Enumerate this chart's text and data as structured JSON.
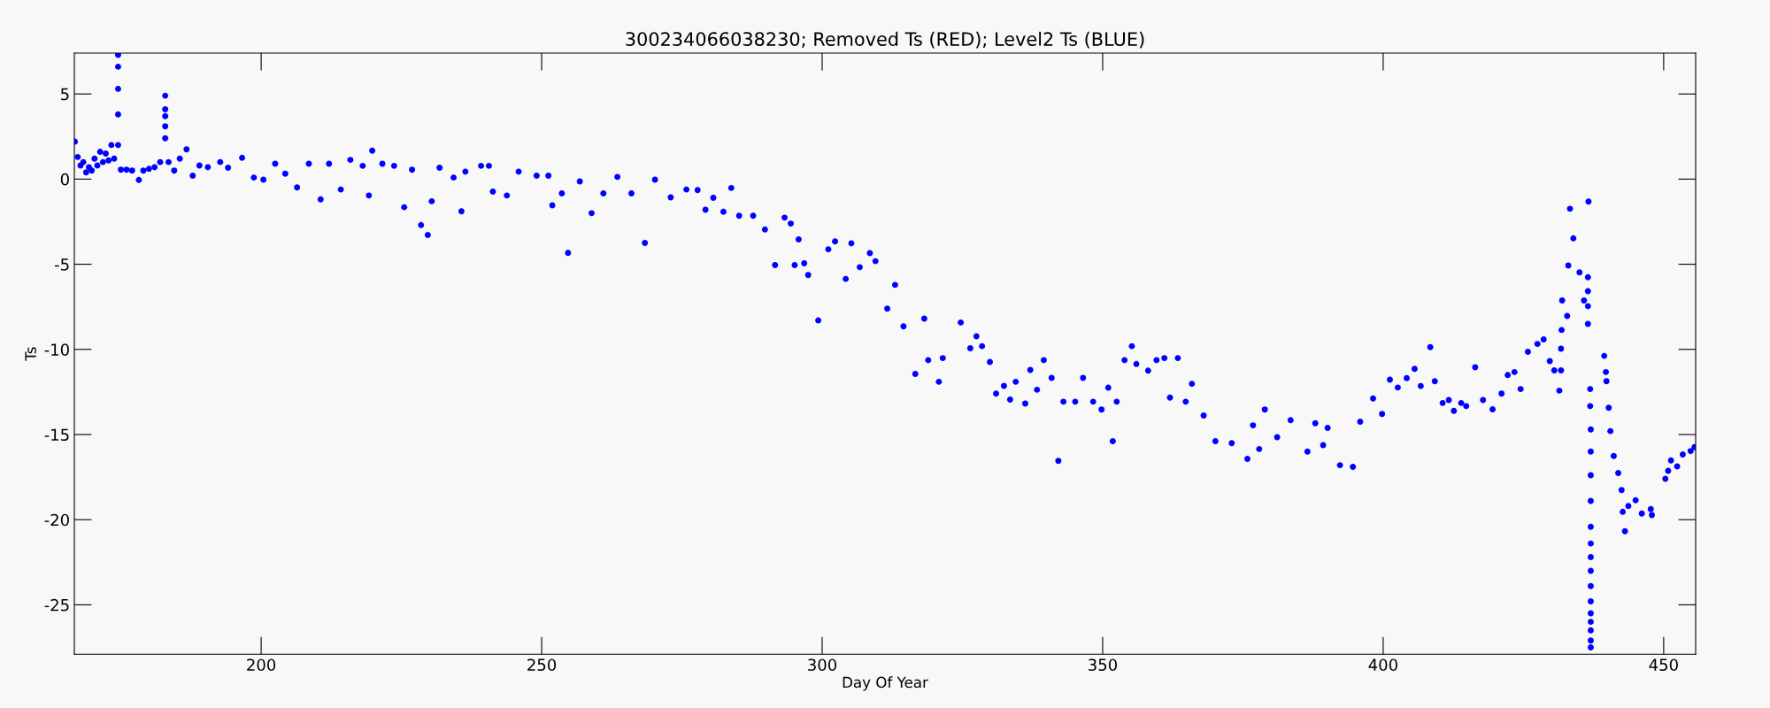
{
  "chart_data": {
    "type": "scatter",
    "title": "300234066038230; Removed Ts (RED); Level2 Ts (BLUE)",
    "xlabel": "Day Of Year",
    "ylabel": "Ts",
    "xlim": [
      166.7,
      455.7
    ],
    "xticks": [
      200,
      250,
      300,
      350,
      400,
      450
    ],
    "ylim": [
      -27.9,
      7.4
    ],
    "yticks": [
      -25,
      -20,
      -15,
      -10,
      -5,
      0,
      5
    ],
    "grid": false,
    "marker": "circle",
    "series": [
      {
        "color": "#0000ff",
        "x": [
          166.8,
          167.3,
          167.8,
          168.3,
          168.8,
          169.3,
          169.8,
          170.3,
          170.8,
          171.3,
          171.8,
          172.3,
          172.8,
          173.3,
          173.8,
          174.5,
          174.5,
          174.5,
          174.5,
          174.5,
          175.0,
          176.0,
          177.0,
          178.2,
          179.0,
          180.0,
          181.0,
          182.0,
          182.9,
          182.9,
          182.9,
          182.9,
          182.9,
          183.5,
          184.5,
          185.5,
          186.7,
          187.8,
          189.0,
          190.5,
          192.7,
          194.1,
          196.6,
          198.7,
          200.4,
          202.5,
          204.3,
          206.4,
          208.5,
          210.6,
          212.1,
          214.2,
          215.9,
          218.1,
          219.2,
          219.8,
          221.6,
          223.7,
          225.5,
          226.9,
          228.5,
          229.7,
          230.4,
          231.8,
          234.3,
          235.7,
          236.4,
          239.2,
          240.6,
          241.3,
          243.8,
          245.9,
          249.1,
          251.2,
          251.9,
          253.6,
          254.7,
          256.8,
          258.9,
          261.0,
          263.5,
          266.0,
          268.4,
          270.2,
          273.0,
          275.8,
          277.8,
          279.2,
          280.6,
          282.4,
          283.8,
          285.2,
          287.7,
          289.8,
          291.6,
          293.3,
          294.4,
          295.1,
          295.8,
          296.8,
          297.5,
          299.3,
          301.1,
          302.3,
          304.2,
          305.2,
          306.7,
          308.5,
          309.5,
          311.6,
          313.0,
          314.5,
          316.6,
          318.2,
          318.9,
          320.8,
          321.5,
          324.7,
          326.4,
          327.5,
          328.5,
          329.9,
          331.0,
          332.4,
          333.5,
          334.5,
          336.2,
          337.1,
          338.3,
          339.5,
          340.9,
          342.1,
          343.0,
          345.1,
          346.5,
          348.3,
          349.8,
          351.0,
          351.8,
          352.5,
          353.9,
          355.2,
          356.0,
          358.1,
          359.6,
          361.0,
          362.0,
          363.4,
          364.8,
          365.9,
          368.0,
          370.1,
          373.0,
          375.8,
          376.8,
          377.9,
          378.9,
          381.1,
          383.5,
          386.5,
          387.9,
          389.3,
          390.1,
          392.3,
          394.6,
          395.9,
          398.2,
          399.8,
          401.2,
          402.6,
          404.2,
          405.6,
          406.7,
          408.4,
          409.2,
          410.6,
          411.7,
          412.6,
          413.9,
          414.8,
          416.4,
          417.8,
          419.5,
          421.1,
          422.2,
          423.4,
          424.5,
          425.8,
          427.5,
          428.6,
          429.7,
          430.5,
          431.4,
          431.7,
          431.7,
          431.8,
          431.9,
          432.8,
          433.0,
          433.3,
          433.9,
          435.0,
          435.8,
          436.5,
          436.6,
          436.5,
          436.5,
          436.5,
          436.9,
          436.9,
          437.0,
          437.0,
          437.0,
          437.0,
          437.0,
          437.0,
          437.0,
          437.0,
          437.0,
          437.0,
          437.0,
          437.0,
          437.0,
          437.0,
          437.0,
          439.4,
          439.7,
          439.8,
          440.2,
          440.5,
          441.1,
          441.9,
          442.5,
          442.7,
          443.1,
          443.7,
          445.0,
          446.1,
          447.7,
          447.9,
          450.3,
          450.8,
          451.3,
          452.4,
          453.4,
          454.8,
          455.5
        ],
        "values": [
          2.2,
          1.3,
          0.8,
          1.0,
          0.4,
          0.7,
          0.5,
          1.2,
          0.8,
          1.6,
          1.0,
          1.5,
          1.1,
          2.0,
          1.2,
          7.3,
          6.6,
          5.3,
          3.8,
          2.0,
          0.55,
          0.55,
          0.5,
          -0.05,
          0.5,
          0.6,
          0.7,
          1.0,
          4.9,
          4.1,
          3.7,
          3.1,
          2.4,
          1.0,
          0.5,
          1.2,
          1.75,
          0.2,
          0.8,
          0.7,
          1.0,
          0.67,
          1.25,
          0.09,
          -0.03,
          0.9,
          0.32,
          -0.49,
          0.9,
          -1.19,
          0.9,
          -0.61,
          1.13,
          0.78,
          -0.96,
          1.67,
          0.9,
          0.78,
          -1.65,
          0.55,
          -2.7,
          -3.28,
          -1.3,
          0.67,
          0.09,
          -1.89,
          0.44,
          0.78,
          0.78,
          -0.73,
          -0.96,
          0.44,
          0.2,
          0.2,
          -1.54,
          -0.84,
          -4.33,
          -0.14,
          -2.0,
          -0.84,
          0.13,
          -0.84,
          -3.75,
          -0.03,
          -1.07,
          -0.61,
          -0.64,
          -1.8,
          -1.1,
          -1.92,
          -0.52,
          -2.15,
          -2.15,
          -2.96,
          -5.05,
          -2.26,
          -2.61,
          -5.05,
          -3.54,
          -4.94,
          -5.63,
          -8.3,
          -4.12,
          -3.66,
          -5.86,
          -3.77,
          -5.17,
          -4.35,
          -4.82,
          -7.61,
          -6.21,
          -8.65,
          -11.44,
          -8.19,
          -10.63,
          -11.9,
          -10.51,
          -8.42,
          -9.93,
          -9.23,
          -9.81,
          -10.74,
          -12.6,
          -12.14,
          -12.95,
          -11.9,
          -13.18,
          -11.21,
          -12.37,
          -10.63,
          -11.67,
          -16.55,
          -13.07,
          -13.07,
          -11.67,
          -13.07,
          -13.53,
          -12.25,
          -15.39,
          -13.07,
          -10.63,
          -9.81,
          -10.86,
          -11.25,
          -10.63,
          -10.51,
          -12.83,
          -10.51,
          -13.07,
          -12.02,
          -13.88,
          -15.39,
          -15.51,
          -16.43,
          -14.46,
          -15.85,
          -13.53,
          -15.16,
          -14.16,
          -16.0,
          -14.34,
          -15.62,
          -14.61,
          -16.8,
          -16.9,
          -14.25,
          -12.88,
          -13.79,
          -11.78,
          -12.24,
          -11.69,
          -11.14,
          -12.15,
          -9.87,
          -11.87,
          -13.15,
          -12.97,
          -13.61,
          -13.15,
          -13.33,
          -11.05,
          -12.97,
          -13.52,
          -12.6,
          -11.51,
          -11.33,
          -12.33,
          -10.14,
          -9.68,
          -9.41,
          -10.69,
          -11.23,
          -12.42,
          -11.23,
          -9.96,
          -8.86,
          -7.13,
          -8.04,
          -5.07,
          -1.74,
          -3.48,
          -5.48,
          -7.13,
          -8.5,
          -1.32,
          -5.76,
          -6.58,
          -7.46,
          -12.33,
          -13.33,
          -14.7,
          -16.0,
          -17.39,
          -18.9,
          -20.42,
          -21.4,
          -22.2,
          -23.0,
          -23.9,
          -24.8,
          -25.5,
          -26.0,
          -26.5,
          -27.1,
          -27.5,
          -10.38,
          -11.33,
          -11.87,
          -13.43,
          -14.8,
          -16.26,
          -17.26,
          -18.26,
          -19.54,
          -20.68,
          -19.2,
          -18.86,
          -19.64,
          -19.38,
          -19.73,
          -17.6,
          -17.13,
          -16.52,
          -16.87,
          -16.17,
          -15.97,
          -15.74
        ]
      }
    ]
  }
}
